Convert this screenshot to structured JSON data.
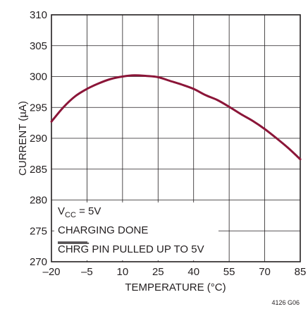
{
  "chart_data": {
    "type": "line",
    "xlabel": "TEMPERATURE (°C)",
    "ylabel": "CURRENT (µA)",
    "xlim": [
      -20,
      85
    ],
    "ylim": [
      270,
      310
    ],
    "x_ticks": [
      "–20",
      "–5",
      "10",
      "25",
      "40",
      "55",
      "70",
      "85"
    ],
    "y_ticks": [
      "270",
      "275",
      "280",
      "285",
      "290",
      "295",
      "300",
      "305",
      "310"
    ],
    "grid": true,
    "series": [
      {
        "color": "#8b1538",
        "x": [
          -20,
          -15,
          -10,
          -5,
          0,
          5,
          10,
          15,
          20,
          25,
          30,
          35,
          40,
          45,
          50,
          55,
          60,
          65,
          70,
          75,
          80,
          85
        ],
        "y": [
          292.7,
          295.0,
          296.8,
          298.0,
          298.9,
          299.6,
          300.0,
          300.2,
          300.1,
          299.9,
          299.3,
          298.7,
          298.0,
          297.0,
          296.2,
          295.1,
          293.9,
          292.8,
          291.5,
          290.0,
          288.4,
          286.6
        ]
      }
    ],
    "annotations": {
      "vcc_main": "V",
      "vcc_sub": "CC",
      "vcc_rest": " = 5V",
      "line2": "CHARGING DONE",
      "chrg_overbar": "CHRG",
      "chrg_rest": " PIN PULLED UP TO 5V"
    },
    "figure_id": "4126 G06"
  }
}
